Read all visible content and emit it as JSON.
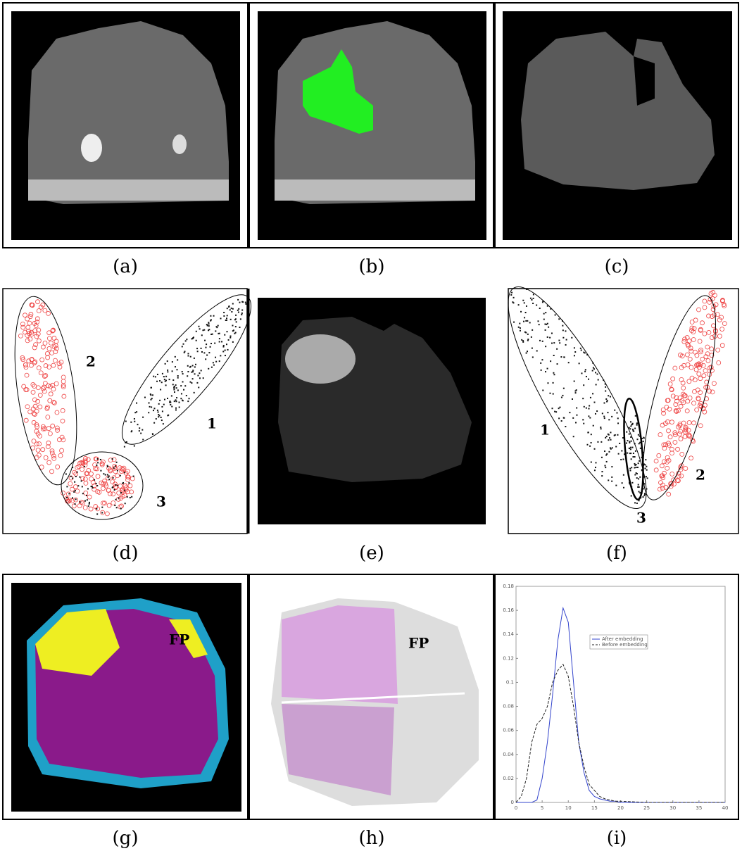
{
  "panels": [
    {
      "caption": "(a)"
    },
    {
      "caption": "(b)"
    },
    {
      "caption": "(c)"
    },
    {
      "caption": "(d)",
      "labels": [
        "2",
        "1",
        "3"
      ]
    },
    {
      "caption": "(e)"
    },
    {
      "caption": "(f)",
      "labels": [
        "1",
        "2",
        "3"
      ]
    },
    {
      "caption": "(g)",
      "labels": [
        "FP"
      ]
    },
    {
      "caption": "(h)",
      "labels": [
        "FP"
      ]
    },
    {
      "caption": "(i)"
    }
  ],
  "plot": {
    "type": "line",
    "xlim": [
      0,
      40
    ],
    "ylim": [
      0,
      0.18
    ],
    "xticks": [
      0,
      5,
      10,
      15,
      20,
      25,
      30,
      35,
      40
    ],
    "yticks": [
      0,
      0.02,
      0.04,
      0.06,
      0.08,
      0.1,
      0.12,
      0.14,
      0.16,
      0.18
    ],
    "x": [
      0,
      1,
      2,
      3,
      4,
      5,
      6,
      7,
      8,
      9,
      10,
      11,
      12,
      13,
      14,
      15,
      16,
      17,
      18,
      19,
      20,
      25,
      30,
      35,
      40
    ],
    "series": [
      {
        "name": "After embedding",
        "color": "#3344cc",
        "line_style": "solid",
        "values": [
          0,
          0,
          0,
          0,
          0.002,
          0.02,
          0.05,
          0.09,
          0.135,
          0.162,
          0.15,
          0.1,
          0.05,
          0.025,
          0.01,
          0.005,
          0.003,
          0.002,
          0.001,
          0.001,
          0,
          0,
          0,
          0,
          0
        ]
      },
      {
        "name": "Before embedding",
        "color": "#222222",
        "line_style": "dashed",
        "values": [
          0,
          0.005,
          0.02,
          0.05,
          0.065,
          0.07,
          0.08,
          0.1,
          0.11,
          0.115,
          0.105,
          0.08,
          0.05,
          0.03,
          0.015,
          0.01,
          0.005,
          0.003,
          0.002,
          0.001,
          0.001,
          0,
          0,
          0,
          0
        ]
      }
    ]
  }
}
